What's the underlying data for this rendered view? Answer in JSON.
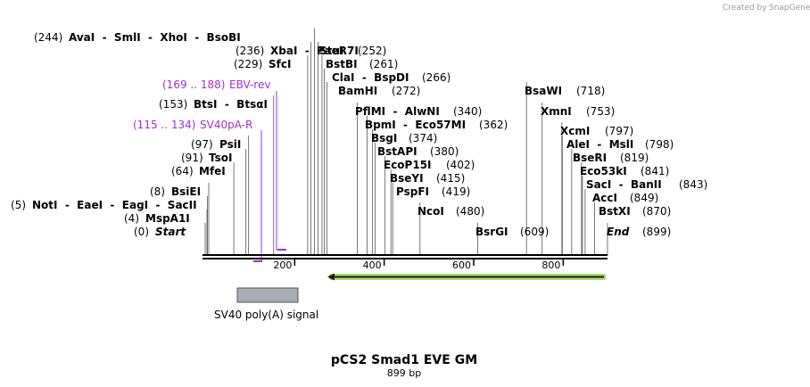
{
  "credit": {
    "text": "Created by",
    "brand": "SnapGene"
  },
  "title": "pCS2 Smad1 EVE GM",
  "length_label": "899 bp",
  "total_bp": 899,
  "ruler": {
    "ticks": [
      200,
      400,
      600,
      800
    ]
  },
  "colors": {
    "backbone": "#000000",
    "primer": "#9d2fd4",
    "feature_box": "#a9acb3",
    "arrow_fill": "#a6e06a",
    "arrow_line": "#1a1a1a"
  },
  "sites": [
    {
      "id": "start",
      "pos": "(0)",
      "name": "Start",
      "italic": true,
      "bp": 0
    },
    {
      "id": "mspa1i",
      "pos": "(4)",
      "name": "MspA1I",
      "bp": 4
    },
    {
      "id": "noti",
      "pos": "(5)",
      "name": "NotI  -  EaeI  -  EagI  -  SacII",
      "bp": 5
    },
    {
      "id": "bsiei",
      "pos": "(8)",
      "name": "BsiEI",
      "bp": 8
    },
    {
      "id": "mfei",
      "pos": "(64)",
      "name": "MfeI",
      "bp": 64
    },
    {
      "id": "tsoi",
      "pos": "(91)",
      "name": "TsoI",
      "bp": 91
    },
    {
      "id": "psii",
      "pos": "(97)",
      "name": "PsiI",
      "bp": 97
    },
    {
      "id": "btsi",
      "pos": "(153)",
      "name": "BtsI  -  BtsαI",
      "bp": 153
    },
    {
      "id": "sfci",
      "pos": "(229)",
      "name": "SfcI",
      "bp": 229
    },
    {
      "id": "xbai",
      "pos": "(236)",
      "name": "XbaI  -  PaeR7I",
      "bp": 236
    },
    {
      "id": "avai",
      "pos": "(244)",
      "name": "AvaI  -  SmlI  -  XhoI  -  BsoBI",
      "bp": 244
    },
    {
      "id": "stui",
      "pos": "(252)",
      "name": "StuI",
      "bp": 252
    },
    {
      "id": "bstbi",
      "pos": "(261)",
      "name": "BstBI",
      "bp": 261
    },
    {
      "id": "clai",
      "pos": "(266)",
      "name": "ClaI  -  BspDI",
      "bp": 266
    },
    {
      "id": "bamhi",
      "pos": "(272)",
      "name": "BamHI",
      "bp": 272
    },
    {
      "id": "pflmi",
      "pos": "(340)",
      "name": "PflMI  -  AlwNI",
      "bp": 340
    },
    {
      "id": "bpmi",
      "pos": "(362)",
      "name": "BpmI  -  Eco57MI",
      "bp": 362
    },
    {
      "id": "bsgi",
      "pos": "(374)",
      "name": "BsgI",
      "bp": 374
    },
    {
      "id": "bstapi",
      "pos": "(380)",
      "name": "BstAPI",
      "bp": 380
    },
    {
      "id": "ecop15i",
      "pos": "(402)",
      "name": "EcoP15I",
      "bp": 402
    },
    {
      "id": "bseyi",
      "pos": "(415)",
      "name": "BseYI",
      "bp": 415
    },
    {
      "id": "pspfi",
      "pos": "(419)",
      "name": "PspFI",
      "bp": 419
    },
    {
      "id": "ncoi",
      "pos": "(480)",
      "name": "NcoI",
      "bp": 480
    },
    {
      "id": "bsrgi",
      "pos": "(609)",
      "name": "BsrGI",
      "bp": 609
    },
    {
      "id": "bsawi",
      "pos": "(718)",
      "name": "BsaWI",
      "bp": 718
    },
    {
      "id": "xmni",
      "pos": "(753)",
      "name": "XmnI",
      "bp": 753
    },
    {
      "id": "xcmi",
      "pos": "(797)",
      "name": "XcmI",
      "bp": 797
    },
    {
      "id": "alei",
      "pos": "(798)",
      "name": "AleI  -  MslI",
      "bp": 798
    },
    {
      "id": "bseri",
      "pos": "(819)",
      "name": "BseRI",
      "bp": 819
    },
    {
      "id": "eco53ki",
      "pos": "(841)",
      "name": "Eco53kI",
      "bp": 841
    },
    {
      "id": "saci",
      "pos": "(843)",
      "name": "SacI  -  BanII",
      "bp": 843
    },
    {
      "id": "acci",
      "pos": "(849)",
      "name": "AccI",
      "bp": 849
    },
    {
      "id": "bstxi",
      "pos": "(870)",
      "name": "BstXI",
      "bp": 870
    },
    {
      "id": "end",
      "pos": "(899)",
      "name": "End",
      "italic": true,
      "bp": 899
    }
  ],
  "primers": [
    {
      "id": "ebv-rev",
      "range": "(169 .. 188)",
      "name": "EBV-rev"
    },
    {
      "id": "sv40pa-r",
      "range": "(115 .. 134)",
      "name": "SV40pA-R"
    }
  ],
  "features": [
    {
      "id": "sv40-polya",
      "name": "SV40 poly(A) signal",
      "start_bp": 70,
      "end_bp": 206
    },
    {
      "id": "orf-arrow",
      "start_bp": 280,
      "end_bp": 899,
      "direction": "reverse"
    }
  ]
}
